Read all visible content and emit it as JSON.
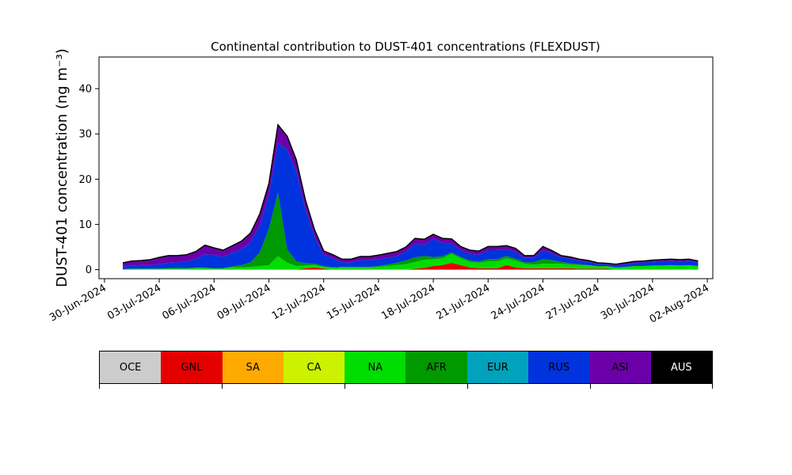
{
  "chart_data": {
    "type": "area",
    "title": "Continental contribution to DUST-401 concentrations (FLEXDUST)",
    "ylabel": "DUST-401 concentration (ng m⁻³)",
    "xlabel": "",
    "ylim": [
      -2,
      47
    ],
    "y_ticks": [
      0,
      10,
      20,
      30,
      40
    ],
    "x_range_days": [
      -0.3,
      33.3
    ],
    "x_ticks": [
      "30-Jun-2024",
      "03-Jul-2024",
      "06-Jul-2024",
      "09-Jul-2024",
      "12-Jul-2024",
      "15-Jul-2024",
      "18-Jul-2024",
      "21-Jul-2024",
      "24-Jul-2024",
      "27-Jul-2024",
      "30-Jul-2024",
      "02-Aug-2024"
    ],
    "grid": false,
    "x": [
      "01-Jul-2024",
      "01-Jul-2024 12:00",
      "02-Jul-2024",
      "02-Jul-2024 12:00",
      "03-Jul-2024",
      "03-Jul-2024 12:00",
      "04-Jul-2024",
      "04-Jul-2024 12:00",
      "05-Jul-2024",
      "05-Jul-2024 12:00",
      "06-Jul-2024",
      "06-Jul-2024 12:00",
      "07-Jul-2024",
      "07-Jul-2024 12:00",
      "08-Jul-2024",
      "08-Jul-2024 12:00",
      "09-Jul-2024",
      "09-Jul-2024 12:00",
      "10-Jul-2024",
      "10-Jul-2024 12:00",
      "11-Jul-2024",
      "11-Jul-2024 12:00",
      "12-Jul-2024",
      "12-Jul-2024 12:00",
      "13-Jul-2024",
      "13-Jul-2024 12:00",
      "14-Jul-2024",
      "14-Jul-2024 12:00",
      "15-Jul-2024",
      "15-Jul-2024 12:00",
      "16-Jul-2024",
      "16-Jul-2024 12:00",
      "17-Jul-2024",
      "17-Jul-2024 12:00",
      "18-Jul-2024",
      "18-Jul-2024 12:00",
      "19-Jul-2024",
      "19-Jul-2024 12:00",
      "20-Jul-2024",
      "20-Jul-2024 12:00",
      "21-Jul-2024",
      "21-Jul-2024 12:00",
      "22-Jul-2024",
      "22-Jul-2024 12:00",
      "23-Jul-2024",
      "23-Jul-2024 12:00",
      "24-Jul-2024",
      "24-Jul-2024 12:00",
      "25-Jul-2024",
      "25-Jul-2024 12:00",
      "26-Jul-2024",
      "26-Jul-2024 12:00",
      "27-Jul-2024",
      "27-Jul-2024 12:00",
      "28-Jul-2024",
      "28-Jul-2024 12:00",
      "29-Jul-2024",
      "29-Jul-2024 12:00",
      "30-Jul-2024",
      "30-Jul-2024 12:00",
      "31-Jul-2024",
      "31-Jul-2024 12:00",
      "01-Aug-2024",
      "01-Aug-2024 12:00"
    ],
    "series": [
      {
        "name": "GNL",
        "color": "#e50000",
        "values": [
          0,
          0,
          0,
          0,
          0,
          0,
          0,
          0,
          0,
          0,
          0,
          0,
          0,
          0,
          0,
          0,
          0,
          0,
          0,
          0,
          0.3,
          0.5,
          0.2,
          0,
          0,
          0,
          0,
          0,
          0,
          0,
          0,
          0,
          0.2,
          0.4,
          0.8,
          1.0,
          1.5,
          1.0,
          0.5,
          0.3,
          0.3,
          0.3,
          1.0,
          0.5,
          0.3,
          0.3,
          0.3,
          0.3,
          0.3,
          0.3,
          0.2,
          0.2,
          0.2,
          0.2,
          0,
          0,
          0,
          0,
          0,
          0,
          0,
          0,
          0,
          0
        ]
      },
      {
        "name": "NA",
        "color": "#00dd00",
        "values": [
          0.1,
          0.2,
          0.2,
          0.2,
          0.2,
          0.3,
          0.3,
          0.3,
          0.4,
          0.4,
          0.3,
          0.3,
          0.5,
          0.5,
          0.6,
          0.8,
          1.0,
          3.0,
          1.5,
          0.8,
          0.6,
          0.5,
          0.4,
          0.4,
          0.5,
          0.5,
          0.5,
          0.5,
          0.6,
          0.8,
          1.0,
          1.2,
          1.5,
          1.8,
          1.5,
          1.5,
          2.0,
          1.5,
          1.2,
          1.2,
          1.5,
          1.5,
          1.5,
          1.5,
          1.0,
          0.8,
          1.0,
          1.0,
          1.0,
          0.8,
          0.8,
          0.7,
          0.5,
          0.5,
          0.5,
          0.6,
          0.8,
          0.8,
          0.9,
          0.9,
          1.0,
          0.9,
          1.0,
          0.8
        ]
      },
      {
        "name": "AFR",
        "color": "#009900",
        "values": [
          0,
          0,
          0,
          0,
          0,
          0,
          0,
          0,
          0,
          0,
          0,
          0,
          0.2,
          0.5,
          1.0,
          3.0,
          8.0,
          14.0,
          3.0,
          1.0,
          0.5,
          0.3,
          0.2,
          0.1,
          0.1,
          0.1,
          0.1,
          0.1,
          0.2,
          0.3,
          0.5,
          0.8,
          1.0,
          0.8,
          0.5,
          0.4,
          0.3,
          0.3,
          0.3,
          0.3,
          0.5,
          0.5,
          0.5,
          0.4,
          0.3,
          0.5,
          1.0,
          0.8,
          0.4,
          0.3,
          0.2,
          0.1,
          0.1,
          0.1,
          0,
          0,
          0,
          0,
          0,
          0,
          0,
          0,
          0,
          0
        ]
      },
      {
        "name": "RUS",
        "color": "#0033dd",
        "values": [
          0.6,
          0.7,
          0.8,
          0.8,
          1.0,
          1.2,
          1.3,
          1.5,
          2.0,
          3.0,
          3.0,
          2.5,
          3.0,
          3.5,
          4.5,
          6.0,
          7.5,
          11.0,
          22.0,
          20.0,
          12.0,
          6.0,
          2.5,
          2.0,
          1.0,
          1.0,
          1.5,
          1.5,
          1.5,
          1.5,
          1.5,
          2.0,
          3.0,
          2.5,
          4.0,
          3.0,
          2.0,
          1.5,
          1.5,
          1.5,
          2.0,
          2.0,
          1.5,
          1.5,
          1.0,
          1.0,
          2.0,
          1.5,
          1.0,
          1.0,
          0.8,
          0.7,
          0.5,
          0.4,
          0.5,
          0.6,
          0.7,
          0.8,
          0.9,
          1.0,
          1.0,
          1.0,
          1.0,
          0.8
        ]
      },
      {
        "name": "ASI",
        "color": "#6b00a8",
        "values": [
          0.8,
          1.0,
          1.0,
          1.2,
          1.5,
          1.6,
          1.5,
          1.5,
          1.6,
          2.0,
          1.5,
          1.5,
          1.6,
          1.8,
          2.0,
          2.5,
          2.5,
          4.0,
          3.0,
          2.5,
          2.0,
          1.5,
          0.8,
          0.8,
          0.7,
          0.7,
          0.8,
          0.8,
          0.9,
          1.0,
          1.0,
          1.0,
          1.2,
          1.2,
          1.0,
          1.0,
          1.0,
          0.8,
          0.8,
          0.8,
          0.8,
          0.8,
          0.8,
          0.8,
          0.5,
          0.5,
          0.8,
          0.6,
          0.4,
          0.4,
          0.3,
          0.3,
          0.2,
          0.2,
          0.2,
          0.3,
          0.3,
          0.3,
          0.3,
          0.3,
          0.3,
          0.3,
          0.3,
          0.3
        ]
      }
    ],
    "total_color": "#000000"
  },
  "legend": {
    "items": [
      {
        "label": "OCE",
        "color": "#cccccc",
        "text_color": "#000000"
      },
      {
        "label": "GNL",
        "color": "#e50000",
        "text_color": "#000000"
      },
      {
        "label": "SA",
        "color": "#ffaa00",
        "text_color": "#000000"
      },
      {
        "label": "CA",
        "color": "#ccf200",
        "text_color": "#000000"
      },
      {
        "label": "NA",
        "color": "#00dd00",
        "text_color": "#000000"
      },
      {
        "label": "AFR",
        "color": "#009900",
        "text_color": "#000000"
      },
      {
        "label": "EUR",
        "color": "#00a3bb",
        "text_color": "#000000"
      },
      {
        "label": "RUS",
        "color": "#0033dd",
        "text_color": "#000000"
      },
      {
        "label": "ASI",
        "color": "#6b00a8",
        "text_color": "#000000"
      },
      {
        "label": "AUS",
        "color": "#000000",
        "text_color": "#ffffff"
      }
    ]
  }
}
